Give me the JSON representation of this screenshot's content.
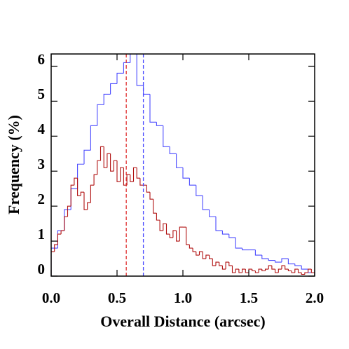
{
  "chart_data": {
    "type": "histogram",
    "x_label": "Overall Distance (arcsec)",
    "y_label": "Frequency (%)",
    "xlim": [
      0,
      2
    ],
    "ylim": [
      0,
      6.35
    ],
    "xticks": [
      {
        "value": 0,
        "label": "0.0"
      },
      0.5,
      {
        "value": 1,
        "label": "1.0"
      },
      1.5,
      {
        "value": 2,
        "label": "2.0"
      }
    ],
    "yticks": [
      0,
      1,
      2,
      3,
      4,
      5,
      6
    ],
    "series": [
      {
        "color": "#4a4aff",
        "bins": [
          0,
          0.05,
          0.1,
          0.15,
          0.2,
          0.25,
          0.3,
          0.35,
          0.4,
          0.45,
          0.5,
          0.55,
          0.6,
          0.65,
          0.7,
          0.75,
          0.8,
          0.85,
          0.9,
          0.95,
          1,
          1.05,
          1.1,
          1.15,
          1.2,
          1.25,
          1.3,
          1.35,
          1.4,
          1.45,
          1.5,
          1.55,
          1.6,
          1.65,
          1.7,
          1.75,
          1.8,
          1.85,
          1.9,
          1.95,
          2
        ],
        "values": [
          0.8,
          1.3,
          1.9,
          2.5,
          3.2,
          3.6,
          4.3,
          4.9,
          5.2,
          5.5,
          5.8,
          6.1,
          6.5,
          5.45,
          5.2,
          4.4,
          4.3,
          3.7,
          3.5,
          3.1,
          2.8,
          2.6,
          2.3,
          1.9,
          1.7,
          1.3,
          1.2,
          1.1,
          0.8,
          0.75,
          0.75,
          0.6,
          0.5,
          0.45,
          0.4,
          0.5,
          0.35,
          0.3,
          0.2,
          0.1
        ]
      },
      {
        "color": "#b01010",
        "bins": [
          0,
          0.025,
          0.05,
          0.075,
          0.1,
          0.125,
          0.15,
          0.175,
          0.2,
          0.225,
          0.25,
          0.275,
          0.3,
          0.325,
          0.35,
          0.375,
          0.4,
          0.425,
          0.45,
          0.475,
          0.5,
          0.525,
          0.55,
          0.575,
          0.6,
          0.625,
          0.65,
          0.675,
          0.7,
          0.725,
          0.75,
          0.775,
          0.8,
          0.825,
          0.85,
          0.875,
          0.9,
          0.925,
          0.95,
          0.975,
          1,
          1.025,
          1.05,
          1.075,
          1.1,
          1.125,
          1.15,
          1.175,
          1.2,
          1.225,
          1.25,
          1.275,
          1.3,
          1.325,
          1.35,
          1.375,
          1.4,
          1.425,
          1.45,
          1.475,
          1.5,
          1.525,
          1.55,
          1.575,
          1.6,
          1.625,
          1.65,
          1.675,
          1.7,
          1.725,
          1.75,
          1.775,
          1.8,
          1.825,
          1.85,
          1.875,
          1.9,
          1.925,
          1.95,
          1.975,
          2
        ],
        "values": [
          0.7,
          0.9,
          1.2,
          1.3,
          1.7,
          2.0,
          2.6,
          2.8,
          2.3,
          2.4,
          1.9,
          2.1,
          2.6,
          2.9,
          3.3,
          3.7,
          3.1,
          3.5,
          3.0,
          3.3,
          2.7,
          3.1,
          2.6,
          2.9,
          2.7,
          3.1,
          2.8,
          2.6,
          2.6,
          2.4,
          2.2,
          1.8,
          1.6,
          1.3,
          1.5,
          1.2,
          1.1,
          1.3,
          1.0,
          1.4,
          1.4,
          0.9,
          0.8,
          0.7,
          0.6,
          0.7,
          0.5,
          0.6,
          0.5,
          0.3,
          0.4,
          0.3,
          0.2,
          0.4,
          0.3,
          0.1,
          0.2,
          0.1,
          0.2,
          0.1,
          0.2,
          0.15,
          0.1,
          0.2,
          0.15,
          0.2,
          0.3,
          0.2,
          0.1,
          0.2,
          0.3,
          0.2,
          0.15,
          0.1,
          0.2,
          0.1,
          0.05,
          0.1,
          0.2,
          0.1
        ]
      }
    ],
    "vlines": [
      {
        "x": 0.57,
        "color": "#e03030"
      },
      {
        "x": 0.7,
        "color": "#4a4aff"
      }
    ]
  }
}
